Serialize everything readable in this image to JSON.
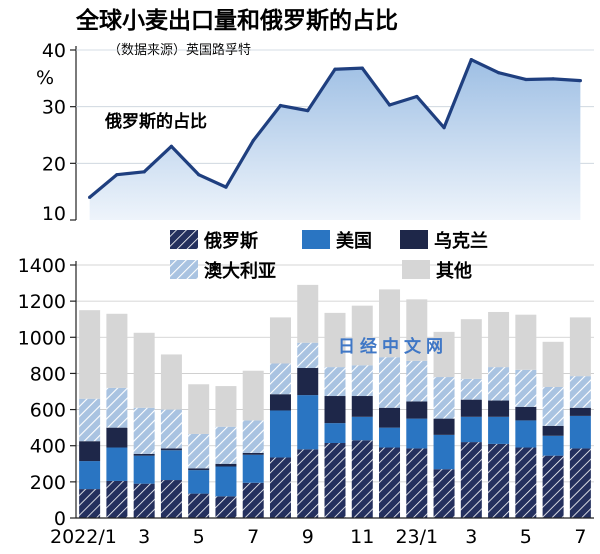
{
  "title": "全球小麦出口量和俄罗斯的占比",
  "source": "（数据来源）英国路孚特",
  "watermark": "日经中文网",
  "colors": {
    "russia": "#24305e",
    "us": "#2a75c2",
    "ukraine": "#1e2749",
    "australia": "#a9c3e1",
    "other": "#d6d6d6",
    "line": "#1f3f7f",
    "area_top": "#9ebfe4",
    "area_bottom": "#eef4fb"
  },
  "chart_data": [
    {
      "type": "area",
      "y_unit": "%",
      "ylim": [
        10,
        40
      ],
      "y_ticks": [
        "10",
        "20",
        "30",
        "40"
      ],
      "series": [
        {
          "name": "俄罗斯的占比",
          "values": [
            14,
            18,
            18.5,
            23,
            18,
            15.8,
            24,
            30.2,
            29.3,
            36.6,
            36.8,
            30.3,
            31.8,
            26.3,
            38.3,
            36,
            34.8,
            34.9,
            34.6
          ]
        }
      ]
    },
    {
      "type": "bar",
      "stacked": true,
      "ylim": [
        0,
        1400
      ],
      "y_ticks": [
        "0",
        "200",
        "400",
        "600",
        "800",
        "1000",
        "1200",
        "1400"
      ],
      "x_tick_labels": [
        "2022/1",
        "3",
        "5",
        "7",
        "9",
        "11",
        "23/1",
        "3",
        "5",
        "7"
      ],
      "x_tick_index": [
        0,
        2,
        4,
        6,
        8,
        10,
        12,
        14,
        16,
        18
      ],
      "categories": [
        "2022/1",
        "2022/2",
        "2022/3",
        "2022/4",
        "2022/5",
        "2022/6",
        "2022/7",
        "2022/8",
        "2022/9",
        "2022/10",
        "2022/11",
        "2022/12",
        "2023/1",
        "2023/2",
        "2023/3",
        "2023/4",
        "2023/5",
        "2023/6",
        "2023/7"
      ],
      "legend": [
        {
          "name": "俄罗斯",
          "key": "russia"
        },
        {
          "name": "美国",
          "key": "us"
        },
        {
          "name": "乌克兰",
          "key": "ukraine"
        },
        {
          "name": "澳大利亚",
          "key": "australia"
        },
        {
          "name": "其他",
          "key": "other"
        }
      ],
      "series": [
        {
          "name": "俄罗斯",
          "key": "russia",
          "values": [
            160,
            205,
            190,
            210,
            135,
            120,
            195,
            335,
            380,
            415,
            430,
            390,
            385,
            270,
            420,
            410,
            390,
            345,
            385
          ]
        },
        {
          "name": "美国",
          "key": "us",
          "values": [
            155,
            185,
            155,
            165,
            130,
            165,
            155,
            260,
            300,
            110,
            130,
            110,
            165,
            190,
            140,
            150,
            150,
            110,
            180
          ]
        },
        {
          "name": "乌克兰",
          "key": "ukraine",
          "values": [
            110,
            110,
            10,
            10,
            10,
            15,
            10,
            90,
            150,
            150,
            115,
            110,
            95,
            90,
            95,
            90,
            75,
            55,
            45
          ]
        },
        {
          "name": "澳大利亚",
          "key": "australia",
          "values": [
            235,
            220,
            255,
            215,
            190,
            205,
            180,
            170,
            140,
            160,
            170,
            280,
            225,
            230,
            115,
            185,
            205,
            215,
            175
          ]
        },
        {
          "name": "其他",
          "key": "other",
          "values": [
            490,
            410,
            415,
            305,
            275,
            225,
            275,
            255,
            320,
            300,
            330,
            375,
            340,
            250,
            330,
            305,
            305,
            250,
            325
          ]
        }
      ]
    }
  ]
}
